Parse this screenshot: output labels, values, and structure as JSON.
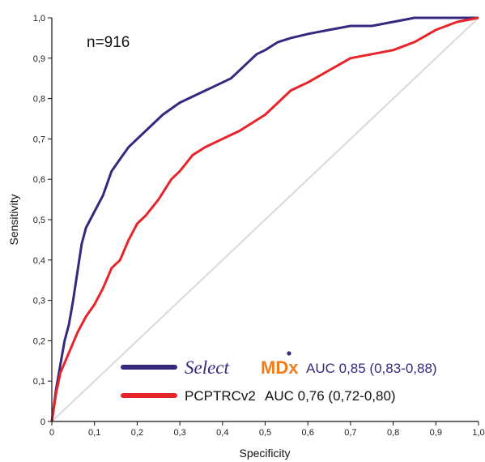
{
  "annotation": "n=916",
  "colors": {
    "selectmdx": "#35297f",
    "pcptrc": "#e8242b",
    "reference": "#d9d9d9",
    "brand_mdx": "#f07d1a",
    "axis": "#111111"
  },
  "chart_data": {
    "type": "line",
    "xlabel": "Specificity",
    "ylabel": "Sensitivity",
    "xlim": [
      0,
      1
    ],
    "ylim": [
      0,
      1
    ],
    "grid": false,
    "x_ticks": [
      "0",
      "0,1",
      "0,2",
      "0,3",
      "0,4",
      "0,5",
      "0,6",
      "0,7",
      "0,8",
      "0,9",
      "1,0"
    ],
    "y_ticks": [
      "0",
      "0,1",
      "0,2",
      "0,3",
      "0,4",
      "0,5",
      "0,6",
      "0,7",
      "0,8",
      "0,9",
      "1,0"
    ],
    "legend_position": "bottom-right",
    "reference_line": {
      "x": [
        0,
        1
      ],
      "y": [
        0,
        1
      ]
    },
    "series": [
      {
        "name_brand_1": "Select",
        "name_brand_2": "MDx",
        "label": "AUC 0,85 (0,83-0,88)",
        "color": "#35297f",
        "x": [
          0,
          0.01,
          0.02,
          0.03,
          0.04,
          0.05,
          0.06,
          0.07,
          0.08,
          0.1,
          0.12,
          0.14,
          0.16,
          0.18,
          0.2,
          0.23,
          0.26,
          0.3,
          0.34,
          0.38,
          0.42,
          0.45,
          0.48,
          0.5,
          0.53,
          0.56,
          0.6,
          0.65,
          0.7,
          0.75,
          0.8,
          0.85,
          0.9,
          0.95,
          1.0
        ],
        "y": [
          0,
          0.08,
          0.14,
          0.2,
          0.24,
          0.3,
          0.37,
          0.44,
          0.48,
          0.52,
          0.56,
          0.62,
          0.65,
          0.68,
          0.7,
          0.73,
          0.76,
          0.79,
          0.81,
          0.83,
          0.85,
          0.88,
          0.91,
          0.92,
          0.94,
          0.95,
          0.96,
          0.97,
          0.98,
          0.98,
          0.99,
          1.0,
          1.0,
          1.0,
          1.0
        ]
      },
      {
        "name": "PCPTRCv2",
        "label": "AUC 0,76 (0,72-0,80)",
        "color": "#e8242b",
        "x": [
          0,
          0.01,
          0.02,
          0.04,
          0.06,
          0.08,
          0.1,
          0.12,
          0.14,
          0.16,
          0.18,
          0.2,
          0.22,
          0.25,
          0.28,
          0.3,
          0.33,
          0.36,
          0.4,
          0.44,
          0.47,
          0.5,
          0.53,
          0.56,
          0.6,
          0.65,
          0.7,
          0.75,
          0.8,
          0.85,
          0.9,
          0.95,
          1.0
        ],
        "y": [
          0,
          0.07,
          0.12,
          0.17,
          0.22,
          0.26,
          0.29,
          0.33,
          0.38,
          0.4,
          0.45,
          0.49,
          0.51,
          0.55,
          0.6,
          0.62,
          0.66,
          0.68,
          0.7,
          0.72,
          0.74,
          0.76,
          0.79,
          0.82,
          0.84,
          0.87,
          0.9,
          0.91,
          0.92,
          0.94,
          0.97,
          0.99,
          1.0
        ]
      }
    ]
  }
}
